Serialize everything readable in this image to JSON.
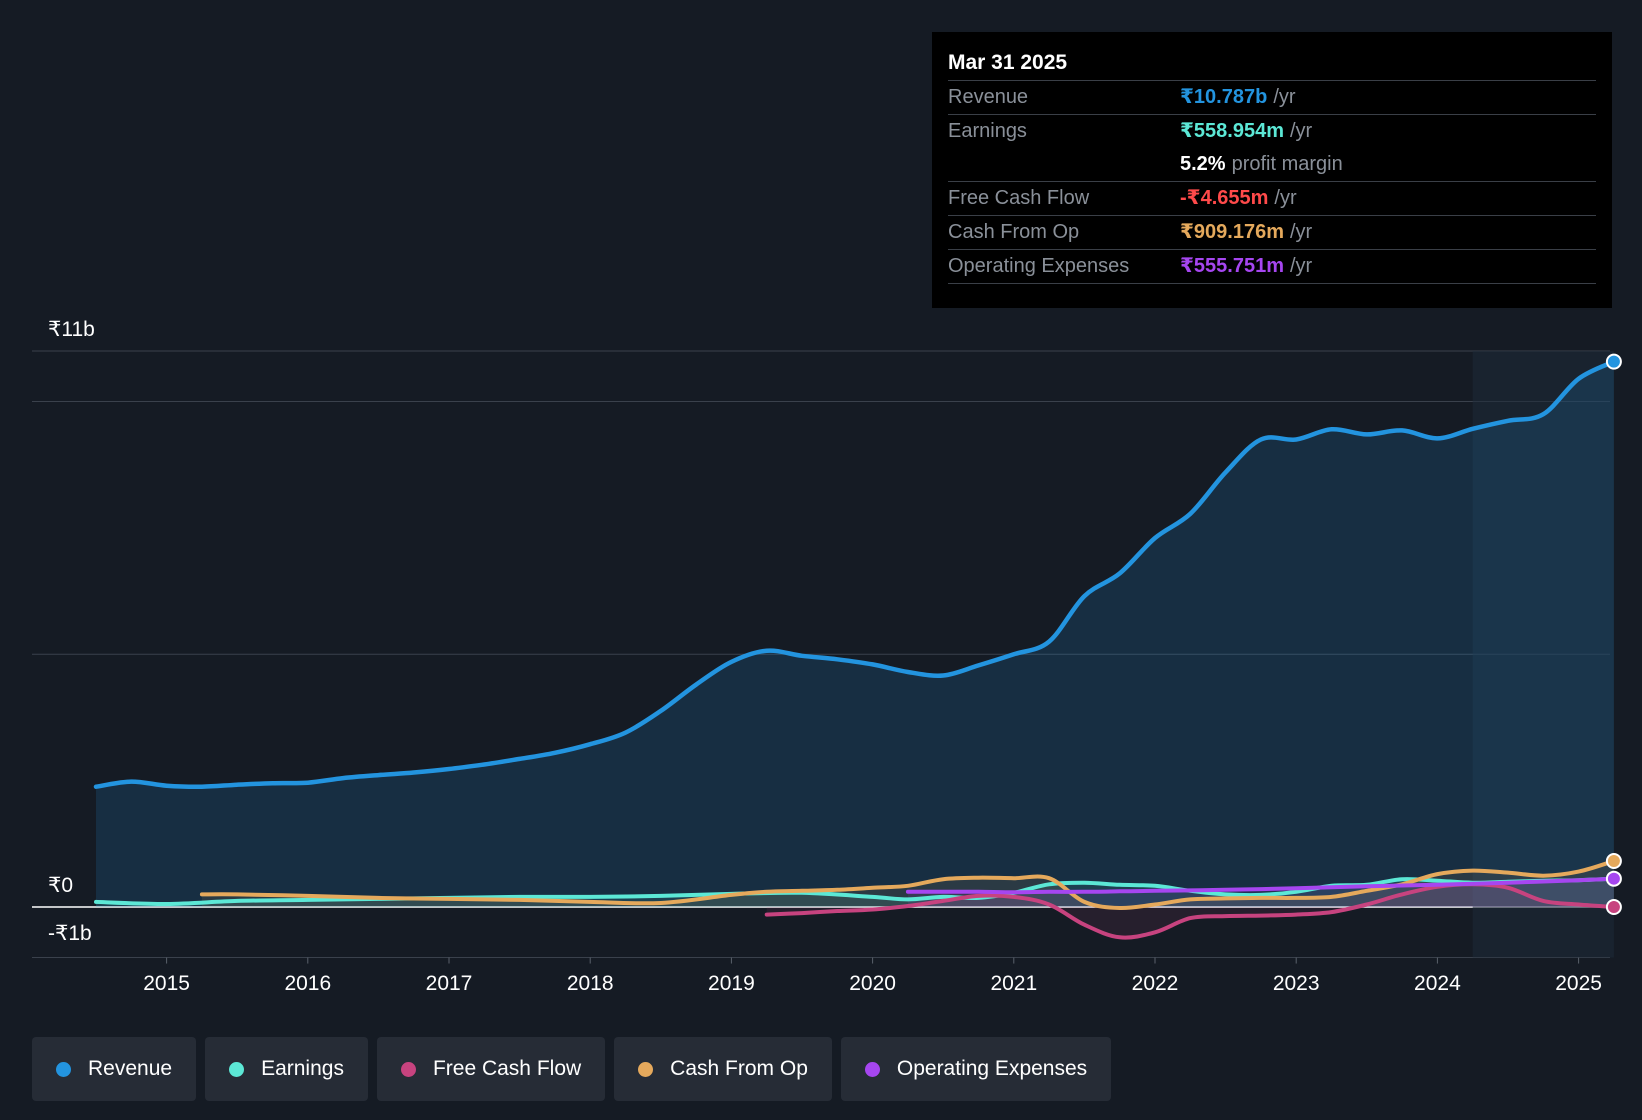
{
  "colors": {
    "revenue": "#2394df",
    "earnings": "#5ce8d6",
    "fcf": "#c7437f",
    "cfo": "#e5a95c",
    "opex": "#a646f0",
    "background": "#151b24"
  },
  "tooltip": {
    "date": "Mar 31 2025",
    "rows": [
      {
        "label": "Revenue",
        "value": "₹10.787b",
        "unit": "/yr"
      },
      {
        "label": "Earnings",
        "value": "₹558.954m",
        "unit": "/yr"
      },
      {
        "label": "",
        "value": "5.2%",
        "unit": "profit margin"
      },
      {
        "label": "Free Cash Flow",
        "value": "-₹4.655m",
        "unit": "/yr"
      },
      {
        "label": "Cash From Op",
        "value": "₹909.176m",
        "unit": "/yr"
      },
      {
        "label": "Operating Expenses",
        "value": "₹555.751m",
        "unit": "/yr"
      }
    ]
  },
  "legend": [
    {
      "label": "Revenue",
      "color": "#2394df"
    },
    {
      "label": "Earnings",
      "color": "#5ce8d6"
    },
    {
      "label": "Free Cash Flow",
      "color": "#c7437f"
    },
    {
      "label": "Cash From Op",
      "color": "#e5a95c"
    },
    {
      "label": "Operating Expenses",
      "color": "#a646f0"
    }
  ],
  "chart_data": {
    "type": "line",
    "y_unit": "₹ billions",
    "ylim": [
      -1,
      11
    ],
    "xlim": [
      2014.2,
      2025.25
    ],
    "y_tick_labels": [
      {
        "value": 11,
        "label": "₹11b"
      },
      {
        "value": 0,
        "label": "₹0"
      },
      {
        "value": -1,
        "label": "-₹1b"
      }
    ],
    "x_ticks": [
      2015,
      2016,
      2017,
      2018,
      2019,
      2020,
      2021,
      2022,
      2023,
      2024,
      2025
    ],
    "x_tick_labels": [
      "2015",
      "2016",
      "2017",
      "2018",
      "2019",
      "2020",
      "2021",
      "2022",
      "2023",
      "2024",
      "2025"
    ],
    "gridlines": [
      11,
      10,
      5,
      0,
      -1
    ],
    "highlight_start": 2024.25,
    "series": [
      {
        "key": "revenue",
        "x": [
          2014.5,
          2014.75,
          2015.0,
          2015.25,
          2015.5,
          2015.75,
          2016.0,
          2016.25,
          2016.5,
          2016.75,
          2017.0,
          2017.25,
          2017.5,
          2017.75,
          2018.0,
          2018.25,
          2018.5,
          2018.75,
          2019.0,
          2019.25,
          2019.5,
          2019.75,
          2020.0,
          2020.25,
          2020.5,
          2020.75,
          2021.0,
          2021.25,
          2021.5,
          2021.75,
          2022.0,
          2022.25,
          2022.5,
          2022.75,
          2023.0,
          2023.25,
          2023.5,
          2023.75,
          2024.0,
          2024.25,
          2024.5,
          2024.75,
          2025.0,
          2025.25
        ],
        "values": [
          2.38,
          2.48,
          2.4,
          2.38,
          2.42,
          2.45,
          2.46,
          2.55,
          2.61,
          2.66,
          2.73,
          2.82,
          2.93,
          3.05,
          3.22,
          3.45,
          3.88,
          4.4,
          4.85,
          5.07,
          4.97,
          4.9,
          4.8,
          4.65,
          4.58,
          4.78,
          5.0,
          5.25,
          6.15,
          6.6,
          7.3,
          7.78,
          8.6,
          9.25,
          9.25,
          9.45,
          9.35,
          9.43,
          9.27,
          9.46,
          9.62,
          9.75,
          10.45,
          10.79
        ]
      },
      {
        "key": "earnings",
        "x": [
          2014.5,
          2015.0,
          2015.5,
          2016.0,
          2016.5,
          2017.0,
          2017.5,
          2018.0,
          2018.5,
          2019.0,
          2019.5,
          2020.0,
          2020.25,
          2020.5,
          2020.75,
          2021.0,
          2021.25,
          2021.5,
          2021.75,
          2022.0,
          2022.25,
          2022.5,
          2022.75,
          2023.0,
          2023.25,
          2023.5,
          2023.75,
          2024.0,
          2024.25,
          2024.5,
          2024.75,
          2025.0,
          2025.25
        ],
        "values": [
          0.1,
          0.06,
          0.12,
          0.14,
          0.16,
          0.18,
          0.2,
          0.2,
          0.22,
          0.26,
          0.28,
          0.2,
          0.15,
          0.2,
          0.18,
          0.28,
          0.45,
          0.48,
          0.44,
          0.42,
          0.32,
          0.25,
          0.24,
          0.3,
          0.42,
          0.44,
          0.55,
          0.52,
          0.48,
          0.5,
          0.52,
          0.53,
          0.56
        ]
      },
      {
        "key": "fcf",
        "x": [
          2019.25,
          2019.5,
          2019.75,
          2020.0,
          2020.25,
          2020.5,
          2020.75,
          2021.0,
          2021.25,
          2021.5,
          2021.75,
          2022.0,
          2022.25,
          2022.5,
          2022.75,
          2023.0,
          2023.25,
          2023.5,
          2023.75,
          2024.0,
          2024.25,
          2024.5,
          2024.75,
          2025.0,
          2025.25
        ],
        "values": [
          -0.15,
          -0.12,
          -0.08,
          -0.05,
          0.02,
          0.12,
          0.22,
          0.2,
          0.05,
          -0.35,
          -0.6,
          -0.5,
          -0.22,
          -0.18,
          -0.17,
          -0.15,
          -0.1,
          0.05,
          0.25,
          0.4,
          0.45,
          0.38,
          0.12,
          0.05,
          0.0
        ]
      },
      {
        "key": "cfo",
        "x": [
          2015.25,
          2015.5,
          2016.0,
          2016.5,
          2017.0,
          2017.5,
          2018.0,
          2018.5,
          2019.0,
          2019.25,
          2019.5,
          2019.75,
          2020.0,
          2020.25,
          2020.5,
          2020.75,
          2021.0,
          2021.25,
          2021.5,
          2021.75,
          2022.0,
          2022.25,
          2022.5,
          2022.75,
          2023.0,
          2023.25,
          2023.5,
          2023.75,
          2024.0,
          2024.25,
          2024.5,
          2024.75,
          2025.0,
          2025.25
        ],
        "values": [
          0.25,
          0.25,
          0.22,
          0.18,
          0.16,
          0.14,
          0.1,
          0.08,
          0.24,
          0.3,
          0.32,
          0.34,
          0.38,
          0.42,
          0.55,
          0.58,
          0.57,
          0.57,
          0.1,
          -0.02,
          0.05,
          0.15,
          0.17,
          0.18,
          0.18,
          0.2,
          0.32,
          0.45,
          0.65,
          0.72,
          0.68,
          0.62,
          0.7,
          0.91
        ]
      },
      {
        "key": "opex",
        "x": [
          2020.25,
          2020.5,
          2020.75,
          2021.0,
          2021.25,
          2021.5,
          2021.75,
          2022.0,
          2022.5,
          2023.0,
          2023.5,
          2024.0,
          2024.5,
          2025.0,
          2025.25
        ],
        "values": [
          0.3,
          0.3,
          0.3,
          0.29,
          0.3,
          0.3,
          0.31,
          0.32,
          0.34,
          0.37,
          0.41,
          0.44,
          0.48,
          0.53,
          0.56
        ]
      }
    ]
  }
}
